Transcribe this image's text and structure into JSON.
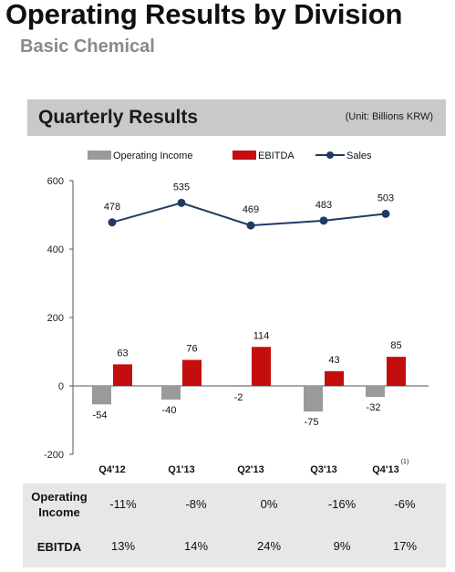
{
  "header": {
    "title": "Operating Results by Division",
    "subtitle": "Basic Chemical"
  },
  "panel": {
    "title": "Quarterly Results",
    "unit": "(Unit: Billions KRW)"
  },
  "colors": {
    "operating_income": "#9a9a9a",
    "ebitda": "#c40d0d",
    "sales": "#1f3a63",
    "panel_header": "#c9c9c9",
    "table_bg": "#e7e7e7"
  },
  "chart_data": {
    "type": "bar",
    "categories": [
      "Q4'12",
      "Q1'13",
      "Q2'13",
      "Q3'13",
      "Q4'13"
    ],
    "footnote_marker": "(1)",
    "ylim": [
      -200,
      600
    ],
    "yticks": [
      -200,
      0,
      200,
      400,
      600
    ],
    "grid": false,
    "legend_position": "top",
    "series": [
      {
        "name": "Operating Income",
        "kind": "bar",
        "values": [
          -54,
          -40,
          -2,
          -75,
          -32
        ],
        "labels": [
          "-54",
          "-40",
          "-2",
          "-75",
          "-32"
        ]
      },
      {
        "name": "EBITDA",
        "kind": "bar",
        "values": [
          63,
          76,
          114,
          43,
          85
        ],
        "labels": [
          "63",
          "76",
          "114",
          "43",
          "85"
        ]
      },
      {
        "name": "Sales",
        "kind": "line",
        "values": [
          478,
          535,
          469,
          483,
          503
        ],
        "labels": [
          "478",
          "535",
          "469",
          "483",
          "503"
        ]
      }
    ]
  },
  "margin_table": {
    "rows": [
      {
        "label": "Operating Income",
        "values": [
          "-11%",
          "-8%",
          "0%",
          "-16%",
          "-6%"
        ]
      },
      {
        "label": "EBITDA",
        "values": [
          "13%",
          "14%",
          "24%",
          "9%",
          "17%"
        ]
      }
    ]
  }
}
